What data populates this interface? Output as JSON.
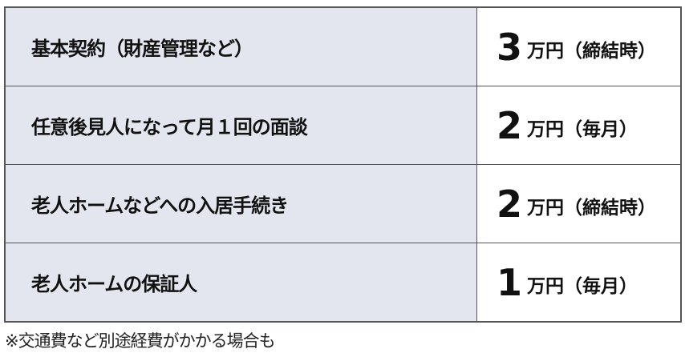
{
  "rows": [
    {
      "label": "基本契約（財産管理など）",
      "amount": "3",
      "unit": "万円（締結時）"
    },
    {
      "label": "任意後見人になって月１回の面談",
      "amount": "2",
      "unit": "万円（毎月）"
    },
    {
      "label": "老人ホームなどへの入居手続き",
      "amount": "2",
      "unit": "万円（締結時）"
    },
    {
      "label": "老人ホームの保証人",
      "amount": "1",
      "unit": "万円（毎月）"
    }
  ],
  "footnote": "※交通費など別途経費がかかる場合も",
  "colors": {
    "label_bg": "#e3e6ef",
    "border": "#555555"
  }
}
